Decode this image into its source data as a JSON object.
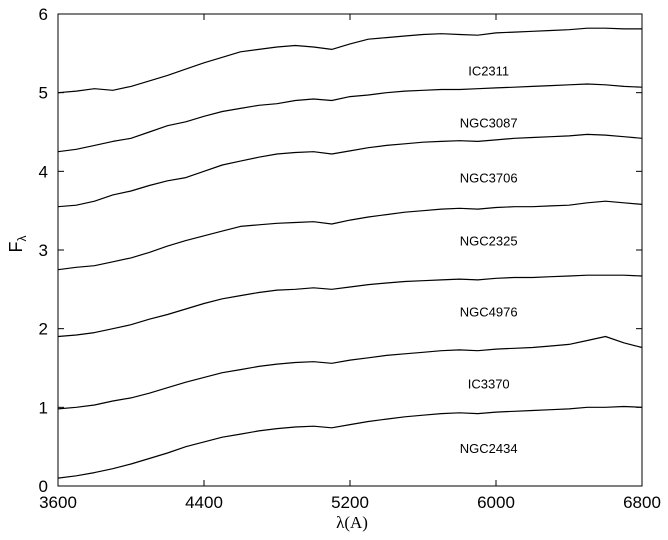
{
  "chart_data": {
    "type": "line",
    "title": "",
    "xlabel": "λ(A)",
    "ylabel": "F",
    "ylabel_subscript": "λ",
    "xlim": [
      3600,
      6800
    ],
    "ylim": [
      0,
      6
    ],
    "x_ticks": [
      "3600",
      "4400",
      "5200",
      "6000",
      "6800"
    ],
    "y_ticks": [
      "0",
      "1",
      "2",
      "3",
      "4",
      "5",
      "6"
    ],
    "grid": false,
    "legend": "none",
    "x": [
      3600,
      3700,
      3800,
      3900,
      4000,
      4100,
      4200,
      4300,
      4400,
      4500,
      4600,
      4700,
      4800,
      4900,
      5000,
      5100,
      5200,
      5300,
      5400,
      5500,
      5600,
      5700,
      5800,
      5900,
      6000,
      6100,
      6200,
      6300,
      6400,
      6500,
      6600,
      6700,
      6800
    ],
    "series": [
      {
        "name": "IC2311",
        "label_x": 5960,
        "label_y": 5.28,
        "values": [
          5.0,
          5.02,
          5.05,
          5.03,
          5.08,
          5.15,
          5.22,
          5.3,
          5.38,
          5.45,
          5.52,
          5.55,
          5.58,
          5.6,
          5.58,
          5.55,
          5.62,
          5.68,
          5.7,
          5.72,
          5.74,
          5.75,
          5.74,
          5.73,
          5.76,
          5.77,
          5.78,
          5.79,
          5.8,
          5.82,
          5.82,
          5.81,
          5.81
        ]
      },
      {
        "name": "NGC3087",
        "label_x": 5960,
        "label_y": 4.62,
        "values": [
          4.25,
          4.28,
          4.33,
          4.38,
          4.42,
          4.5,
          4.58,
          4.63,
          4.7,
          4.76,
          4.8,
          4.84,
          4.86,
          4.9,
          4.92,
          4.9,
          4.95,
          4.97,
          5.0,
          5.02,
          5.03,
          5.04,
          5.04,
          5.05,
          5.06,
          5.07,
          5.08,
          5.09,
          5.1,
          5.11,
          5.1,
          5.08,
          5.07
        ]
      },
      {
        "name": "NGC3706",
        "label_x": 5960,
        "label_y": 3.92,
        "values": [
          3.55,
          3.57,
          3.62,
          3.7,
          3.75,
          3.82,
          3.88,
          3.92,
          4.0,
          4.08,
          4.13,
          4.18,
          4.22,
          4.24,
          4.25,
          4.22,
          4.26,
          4.3,
          4.33,
          4.35,
          4.37,
          4.38,
          4.39,
          4.38,
          4.4,
          4.42,
          4.43,
          4.44,
          4.45,
          4.47,
          4.46,
          4.44,
          4.42
        ]
      },
      {
        "name": "NGC2325",
        "label_x": 5960,
        "label_y": 3.12,
        "values": [
          2.75,
          2.78,
          2.8,
          2.85,
          2.9,
          2.97,
          3.05,
          3.12,
          3.18,
          3.24,
          3.3,
          3.32,
          3.34,
          3.35,
          3.36,
          3.33,
          3.38,
          3.42,
          3.45,
          3.48,
          3.5,
          3.52,
          3.53,
          3.52,
          3.54,
          3.55,
          3.55,
          3.56,
          3.57,
          3.6,
          3.62,
          3.6,
          3.58
        ]
      },
      {
        "name": "NGC4976",
        "label_x": 5960,
        "label_y": 2.22,
        "values": [
          1.9,
          1.92,
          1.95,
          2.0,
          2.05,
          2.12,
          2.18,
          2.25,
          2.32,
          2.38,
          2.42,
          2.46,
          2.49,
          2.5,
          2.52,
          2.5,
          2.53,
          2.56,
          2.58,
          2.6,
          2.61,
          2.62,
          2.63,
          2.62,
          2.64,
          2.65,
          2.65,
          2.66,
          2.67,
          2.68,
          2.68,
          2.68,
          2.67
        ]
      },
      {
        "name": "IC3370",
        "label_x": 5960,
        "label_y": 1.3,
        "values": [
          0.98,
          1.0,
          1.03,
          1.08,
          1.12,
          1.18,
          1.25,
          1.32,
          1.38,
          1.44,
          1.48,
          1.52,
          1.55,
          1.57,
          1.58,
          1.56,
          1.6,
          1.63,
          1.66,
          1.68,
          1.7,
          1.72,
          1.73,
          1.72,
          1.74,
          1.75,
          1.76,
          1.78,
          1.8,
          1.85,
          1.9,
          1.82,
          1.76
        ]
      },
      {
        "name": "NGC2434",
        "label_x": 5960,
        "label_y": 0.48,
        "values": [
          0.1,
          0.13,
          0.17,
          0.22,
          0.28,
          0.35,
          0.42,
          0.5,
          0.56,
          0.62,
          0.66,
          0.7,
          0.73,
          0.75,
          0.76,
          0.74,
          0.78,
          0.82,
          0.85,
          0.88,
          0.9,
          0.92,
          0.93,
          0.92,
          0.94,
          0.95,
          0.96,
          0.97,
          0.98,
          1.0,
          1.0,
          1.01,
          1.0
        ]
      }
    ]
  }
}
